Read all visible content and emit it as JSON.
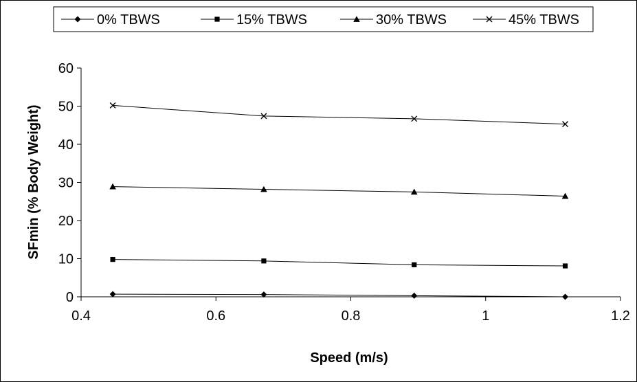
{
  "chart_data": {
    "type": "line",
    "title": "",
    "xlabel": "Speed (m/s)",
    "ylabel": "SFmin (% Body Weight)",
    "xlim": [
      0.4,
      1.2
    ],
    "ylim": [
      0,
      60
    ],
    "x_ticks": [
      "0.4",
      "0.6",
      "0.8",
      "1",
      "1.2"
    ],
    "y_ticks": [
      "0",
      "10",
      "20",
      "30",
      "40",
      "50",
      "60"
    ],
    "grid": false,
    "legend_position": "top",
    "x": [
      0.447,
      0.671,
      0.894,
      1.118
    ],
    "series": [
      {
        "name": "0% TBWS",
        "marker": "diamond",
        "values": [
          0.7,
          0.6,
          0.3,
          0.0
        ]
      },
      {
        "name": "15% TBWS",
        "marker": "square",
        "values": [
          9.8,
          9.4,
          8.4,
          8.1
        ]
      },
      {
        "name": "30% TBWS",
        "marker": "triangle",
        "values": [
          28.9,
          28.2,
          27.5,
          26.4
        ]
      },
      {
        "name": "45% TBWS",
        "marker": "x",
        "values": [
          50.2,
          47.4,
          46.7,
          45.3
        ]
      }
    ],
    "line_color": "#000000"
  }
}
